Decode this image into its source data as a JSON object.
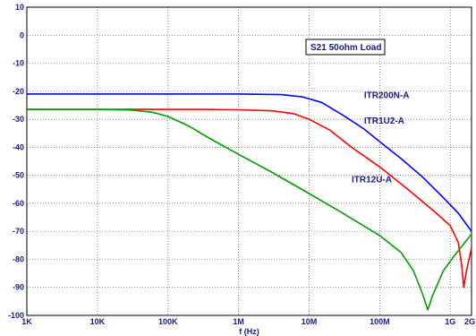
{
  "chart_data": {
    "type": "line",
    "title": "S21 50ohm Load",
    "xlabel": "f (Hz)",
    "ylabel": "",
    "x_scale": "log",
    "xlim_hz": [
      1000,
      2000000000
    ],
    "ylim": [
      -100,
      10
    ],
    "grid": true,
    "x_ticks": [
      {
        "value": 1000,
        "label": "1K"
      },
      {
        "value": 10000,
        "label": "10K"
      },
      {
        "value": 100000,
        "label": "100K"
      },
      {
        "value": 1000000,
        "label": "1M"
      },
      {
        "value": 10000000,
        "label": "10M"
      },
      {
        "value": 100000000,
        "label": "100M"
      },
      {
        "value": 1000000000,
        "label": "1G"
      },
      {
        "value": 2000000000,
        "label": "2G"
      }
    ],
    "y_ticks": [
      10,
      0,
      -10,
      -20,
      -30,
      -40,
      -50,
      -60,
      -70,
      -80,
      -90,
      -100
    ],
    "series": [
      {
        "name": "ITR200N-A",
        "color": "#0000ff",
        "points": [
          [
            1000,
            -21
          ],
          [
            100000,
            -21
          ],
          [
            1000000,
            -21
          ],
          [
            4000000,
            -21.2
          ],
          [
            8000000,
            -22
          ],
          [
            15000000,
            -24
          ],
          [
            30000000,
            -28.5
          ],
          [
            60000000,
            -33.5
          ],
          [
            100000000,
            -38
          ],
          [
            200000000,
            -44
          ],
          [
            400000000,
            -50.5
          ],
          [
            800000000,
            -58
          ],
          [
            1300000000,
            -63.5
          ],
          [
            2000000000,
            -70
          ]
        ]
      },
      {
        "name": "ITR1U2-A",
        "color": "#ff0000",
        "points": [
          [
            1000,
            -26.5
          ],
          [
            100000,
            -26.5
          ],
          [
            300000,
            -26.5
          ],
          [
            1000000,
            -26.6
          ],
          [
            3000000,
            -27
          ],
          [
            6000000,
            -28
          ],
          [
            10000000,
            -30
          ],
          [
            20000000,
            -34
          ],
          [
            40000000,
            -40
          ],
          [
            100000000,
            -47
          ],
          [
            250000000,
            -55
          ],
          [
            600000000,
            -63
          ],
          [
            1000000000,
            -68
          ],
          [
            1300000000,
            -74
          ],
          [
            1450000000,
            -82
          ],
          [
            1550000000,
            -90
          ],
          [
            1700000000,
            -84
          ],
          [
            2000000000,
            -76
          ]
        ]
      },
      {
        "name": "ITR12U-A",
        "color": "#00a000",
        "points": [
          [
            1000,
            -26.5
          ],
          [
            10000,
            -26.5
          ],
          [
            30000,
            -26.7
          ],
          [
            60000,
            -27.5
          ],
          [
            100000,
            -29
          ],
          [
            200000,
            -32.5
          ],
          [
            400000,
            -37
          ],
          [
            1000000,
            -42.5
          ],
          [
            3000000,
            -49
          ],
          [
            10000000,
            -56.5
          ],
          [
            30000000,
            -63.5
          ],
          [
            100000000,
            -71.5
          ],
          [
            200000000,
            -77.5
          ],
          [
            300000000,
            -84
          ],
          [
            400000000,
            -92
          ],
          [
            480000000,
            -98
          ],
          [
            560000000,
            -93
          ],
          [
            800000000,
            -84
          ],
          [
            1200000000,
            -78
          ],
          [
            2000000000,
            -71
          ]
        ]
      }
    ],
    "series_labels": [
      {
        "series": 0,
        "text": "ITR200N-A",
        "at_x": 60000000,
        "at_y": -22.5
      },
      {
        "series": 1,
        "text": "ITR1U2-A",
        "at_x": 60000000,
        "at_y": -31.5
      },
      {
        "series": 2,
        "text": "ITR12U-A",
        "at_x": 40000000,
        "at_y": -52.5
      }
    ],
    "legend_box": {
      "text": "S21 50ohm Load",
      "position": "top-right"
    }
  }
}
